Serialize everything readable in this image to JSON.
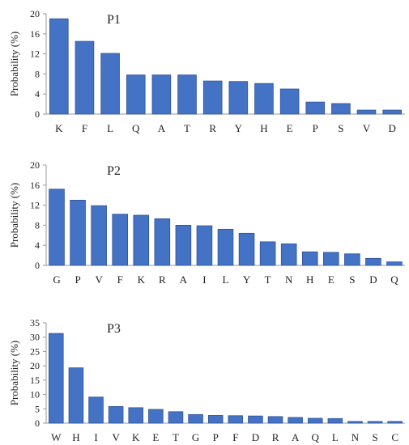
{
  "chart_data": [
    {
      "type": "bar",
      "title": "P1",
      "xlabel": "",
      "ylabel": "Probability (%)",
      "ylim": [
        0,
        20
      ],
      "yticks": [
        0,
        4,
        8,
        12,
        16,
        20
      ],
      "grid": false,
      "bar_color": "#4472C4",
      "categories": [
        "K",
        "F",
        "L",
        "Q",
        "A",
        "T",
        "R",
        "Y",
        "H",
        "E",
        "P",
        "S",
        "V",
        "D"
      ],
      "values": [
        19.0,
        14.5,
        12.1,
        7.8,
        7.8,
        7.8,
        6.6,
        6.5,
        6.1,
        5.0,
        2.4,
        2.1,
        0.8,
        0.8
      ]
    },
    {
      "type": "bar",
      "title": "P2",
      "xlabel": "",
      "ylabel": "Probability (%)",
      "ylim": [
        0,
        20
      ],
      "yticks": [
        0,
        4,
        8,
        12,
        16,
        20
      ],
      "grid": false,
      "bar_color": "#4472C4",
      "categories": [
        "G",
        "P",
        "V",
        "F",
        "K",
        "R",
        "A",
        "I",
        "L",
        "Y",
        "T",
        "N",
        "H",
        "E",
        "S",
        "D",
        "Q"
      ],
      "values": [
        15.2,
        13.0,
        11.9,
        10.2,
        10.0,
        9.3,
        8.0,
        7.9,
        7.2,
        6.4,
        4.7,
        4.3,
        2.7,
        2.6,
        2.3,
        1.4,
        0.7
      ]
    },
    {
      "type": "bar",
      "title": "P3",
      "xlabel": "",
      "ylabel": "Probability (%)",
      "ylim": [
        0,
        35
      ],
      "yticks": [
        0,
        5,
        10,
        15,
        20,
        25,
        30,
        35
      ],
      "grid": false,
      "bar_color": "#4472C4",
      "categories": [
        "W",
        "H",
        "I",
        "V",
        "K",
        "E",
        "T",
        "G",
        "P",
        "F",
        "D",
        "R",
        "A",
        "Q",
        "L",
        "N",
        "S",
        "C"
      ],
      "values": [
        31.3,
        19.3,
        9.1,
        5.8,
        5.4,
        4.8,
        4.0,
        3.0,
        2.7,
        2.6,
        2.5,
        2.3,
        2.0,
        1.7,
        1.6,
        0.6,
        0.6,
        0.6
      ]
    }
  ]
}
